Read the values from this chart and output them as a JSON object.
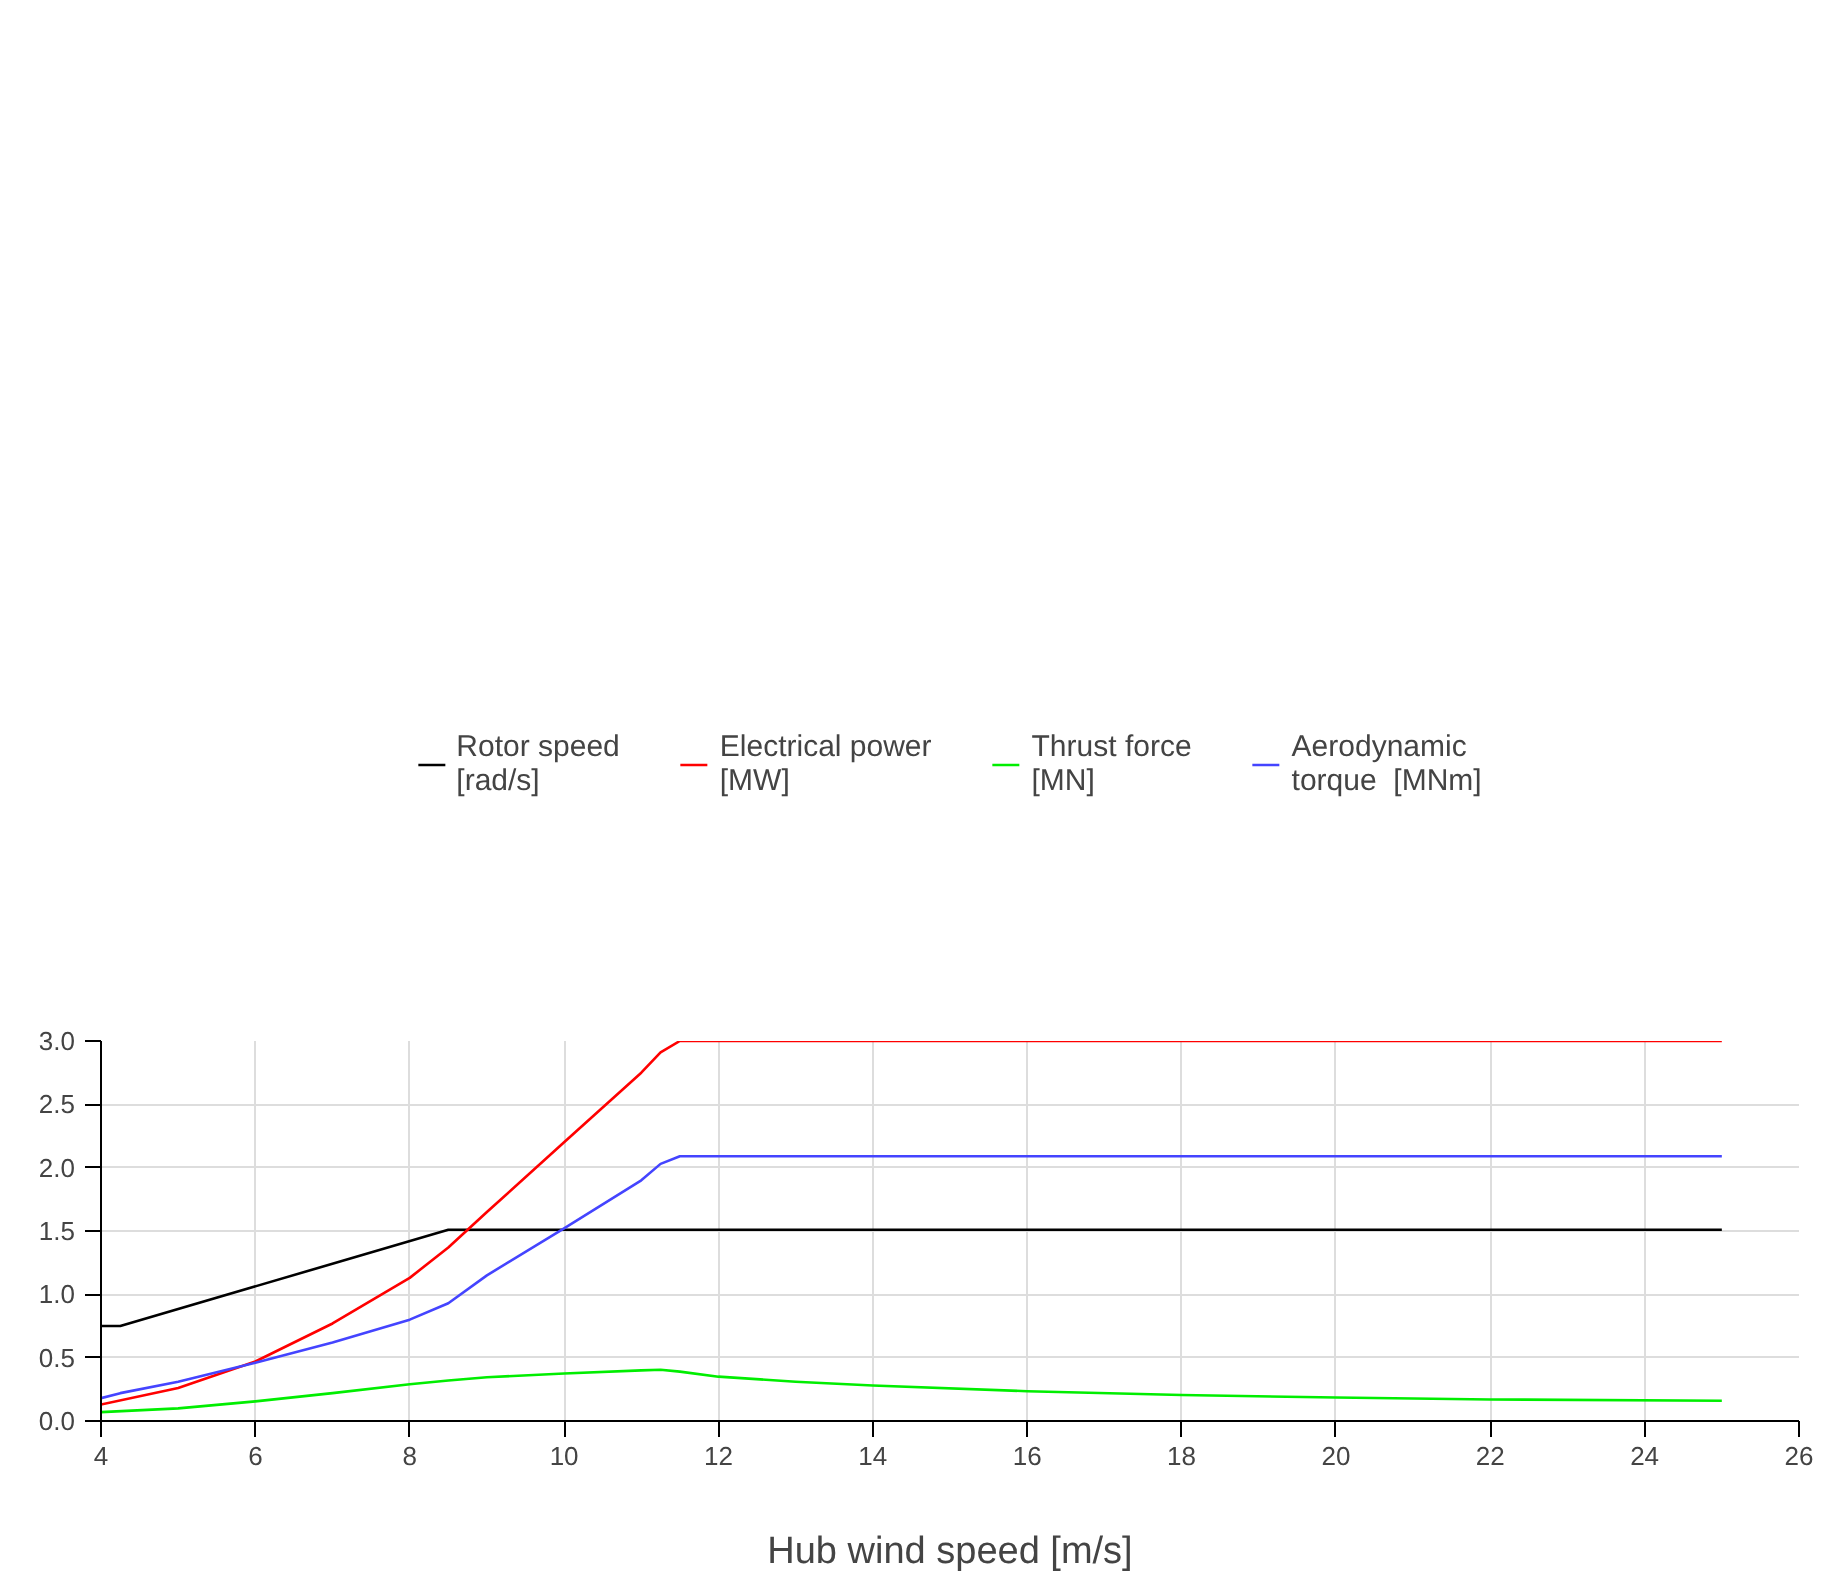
{
  "chart_data": {
    "type": "line",
    "xlabel": "Hub wind speed [m/s]",
    "xlim": [
      4,
      26
    ],
    "xticks": [
      4,
      6,
      8,
      10,
      12,
      14,
      16,
      18,
      20,
      22,
      24,
      26
    ],
    "ylim": [
      0,
      3.0
    ],
    "yticks": [
      {
        "value": 0,
        "label": "0.0"
      },
      0.5,
      {
        "value": 1,
        "label": "1.0"
      },
      1.5,
      {
        "value": 2,
        "label": "2.0"
      },
      2.5,
      {
        "value": 3,
        "label": "3.0"
      }
    ],
    "grid": true,
    "legend": "top",
    "marker": "none",
    "line_style": "solid",
    "series": [
      {
        "name": "Rotor speed\n[rad/s]",
        "color": "#000000",
        "x": [
          4,
          4.25,
          8.5,
          25
        ],
        "values": [
          0.75,
          0.75,
          1.51,
          1.51
        ]
      },
      {
        "name": "Electrical power\n[MW]",
        "color": "#ff0000",
        "x": [
          4,
          5,
          6,
          7,
          8,
          8.5,
          9,
          10,
          11,
          11.25,
          11.5,
          25
        ],
        "values": [
          0.13,
          0.26,
          0.47,
          0.77,
          1.13,
          1.37,
          1.65,
          2.2,
          2.75,
          2.91,
          3.0,
          3.0
        ]
      },
      {
        "name": "Thrust force\n[MN]",
        "color": "#00ee00",
        "x": [
          4,
          5,
          6,
          7,
          8,
          8.5,
          9,
          10,
          11,
          11.25,
          11.5,
          12,
          13,
          14,
          16,
          18,
          20,
          22,
          25
        ],
        "values": [
          0.07,
          0.1,
          0.155,
          0.22,
          0.29,
          0.32,
          0.345,
          0.375,
          0.4,
          0.405,
          0.39,
          0.35,
          0.31,
          0.28,
          0.235,
          0.205,
          0.185,
          0.17,
          0.16
        ]
      },
      {
        "name": "Aerodynamic\ntorque  [MNm]",
        "color": "#4444ff",
        "x": [
          4,
          4.25,
          5,
          6,
          7,
          8,
          8.5,
          9,
          10,
          11,
          11.25,
          11.5,
          13,
          25
        ],
        "values": [
          0.18,
          0.22,
          0.31,
          0.46,
          0.62,
          0.8,
          0.93,
          1.15,
          1.52,
          1.9,
          2.03,
          2.09,
          2.09,
          2.09
        ]
      }
    ]
  }
}
